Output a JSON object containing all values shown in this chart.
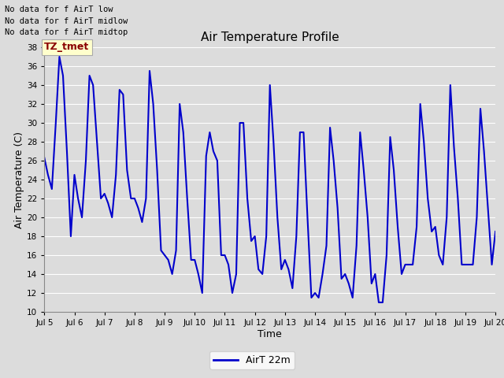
{
  "title": "Air Temperature Profile",
  "xlabel": "Time",
  "ylabel": "Air Temperature (C)",
  "line_color": "#0000CC",
  "line_width": 1.5,
  "ylim": [
    10,
    38
  ],
  "yticks": [
    10,
    12,
    14,
    16,
    18,
    20,
    22,
    24,
    26,
    28,
    30,
    32,
    34,
    36,
    38
  ],
  "background_color": "#DCDCDC",
  "plot_bg_color": "#DCDCDC",
  "legend_label": "AirT 22m",
  "no_data_texts": [
    "No data for f AirT low",
    "No data for f AirT midlow",
    "No data for f AirT midtop"
  ],
  "tz_tmet_label": "TZ_tmet",
  "x_tick_labels": [
    "Jul 5",
    "Jul 6",
    "Jul 7",
    "Jul 8",
    "Jul 9",
    "Jul 10",
    "Jul 11",
    "Jul 12",
    "Jul 13",
    "Jul 14",
    "Jul 15",
    "Jul 16",
    "Jul 17",
    "Jul 18",
    "Jul 19",
    "Jul 20"
  ],
  "x_tick_positions": [
    0,
    1,
    2,
    3,
    4,
    5,
    6,
    7,
    8,
    9,
    10,
    11,
    12,
    13,
    14,
    15
  ],
  "time_data": [
    0,
    0.12,
    0.25,
    0.38,
    0.5,
    0.62,
    0.75,
    0.88,
    1,
    1.12,
    1.25,
    1.38,
    1.5,
    1.62,
    1.75,
    1.88,
    2,
    2.12,
    2.25,
    2.38,
    2.5,
    2.62,
    2.75,
    2.88,
    3,
    3.12,
    3.25,
    3.38,
    3.5,
    3.62,
    3.75,
    3.88,
    4,
    4.12,
    4.25,
    4.38,
    4.5,
    4.62,
    4.75,
    4.88,
    5,
    5.12,
    5.25,
    5.38,
    5.5,
    5.62,
    5.75,
    5.88,
    6,
    6.12,
    6.25,
    6.38,
    6.5,
    6.62,
    6.75,
    6.88,
    7,
    7.12,
    7.25,
    7.38,
    7.5,
    7.62,
    7.75,
    7.88,
    8,
    8.12,
    8.25,
    8.38,
    8.5,
    8.62,
    8.75,
    8.88,
    9,
    9.12,
    9.25,
    9.38,
    9.5,
    9.62,
    9.75,
    9.88,
    10,
    10.12,
    10.25,
    10.38,
    10.5,
    10.62,
    10.75,
    10.88,
    11,
    11.12,
    11.25,
    11.38,
    11.5,
    11.62,
    11.75,
    11.88,
    12,
    12.12,
    12.25,
    12.38,
    12.5,
    12.62,
    12.75,
    12.88,
    13,
    13.12,
    13.25,
    13.38,
    13.5,
    13.62,
    13.75,
    13.88,
    14,
    14.12,
    14.25,
    14.38,
    14.5,
    14.62,
    14.75,
    14.88,
    15
  ],
  "temp_data": [
    26.3,
    24.5,
    23,
    30,
    37,
    35,
    27,
    18,
    24.5,
    22,
    20,
    26,
    35,
    34,
    28,
    22,
    22.5,
    21.5,
    20,
    24.5,
    33.5,
    33,
    25,
    22,
    22,
    21,
    19.5,
    22,
    35.5,
    32,
    25,
    16.5,
    16,
    15.5,
    14,
    16.5,
    32,
    29,
    22,
    15.5,
    15.5,
    14,
    12,
    26.5,
    29,
    27,
    26,
    16,
    16,
    15,
    12,
    14,
    30,
    30,
    22,
    17.5,
    18,
    14.5,
    14,
    18,
    34,
    28,
    20,
    14.5,
    15.5,
    14.5,
    12.5,
    18,
    29,
    29,
    20,
    11.5,
    12,
    11.5,
    14,
    17,
    29.5,
    26,
    21,
    13.5,
    14,
    13,
    11.5,
    17,
    29,
    25,
    20,
    13,
    14,
    11,
    11,
    16,
    28.5,
    25,
    19,
    14,
    15,
    15,
    15,
    19,
    32,
    28,
    22,
    18.5,
    19,
    16,
    15,
    20,
    34,
    27.5,
    22,
    15,
    15,
    15,
    15,
    20,
    31.5,
    27,
    21,
    15,
    18.5
  ]
}
